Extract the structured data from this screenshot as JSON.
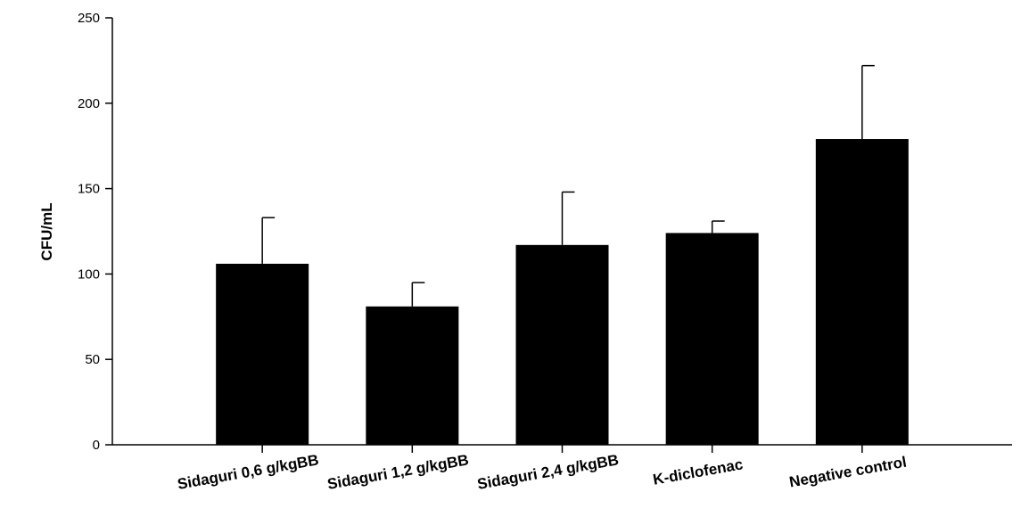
{
  "chart_data": {
    "type": "bar",
    "title": "",
    "xlabel": "",
    "ylabel": "CFU/mL",
    "ylim": [
      0,
      250
    ],
    "yticks": [
      0,
      50,
      100,
      150,
      200,
      250
    ],
    "grid": false,
    "categories": [
      "Sidaguri 0,6 g/kgBB",
      "Sidaguri 1,2 g/kgBB",
      "Sidaguri 2,4 g/kgBB",
      "K-diclofenac",
      "Negative control"
    ],
    "values": [
      106,
      81,
      117,
      124,
      179
    ],
    "error_bars": [
      27,
      14,
      31,
      7,
      43
    ],
    "colors": {
      "bar": "#000000",
      "axis": "#000000",
      "background": "#ffffff"
    }
  }
}
